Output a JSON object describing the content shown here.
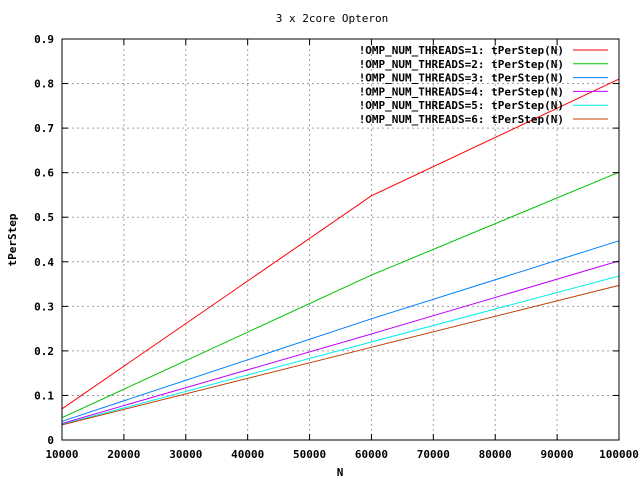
{
  "chart_data": {
    "type": "line",
    "title": "3 x 2core Opteron",
    "xlabel": "N",
    "ylabel": "tPerStep",
    "xlim": [
      10000,
      100000
    ],
    "ylim": [
      0,
      0.9
    ],
    "xticks": [
      10000,
      20000,
      30000,
      40000,
      50000,
      60000,
      70000,
      80000,
      90000,
      100000
    ],
    "yticks": [
      0,
      0.1,
      0.2,
      0.3,
      0.4,
      0.5,
      0.6,
      0.7,
      0.8,
      0.9
    ],
    "xtick_labels": [
      "10000",
      "20000",
      "30000",
      "40000",
      "50000",
      "60000",
      "70000",
      "80000",
      "90000",
      "100000"
    ],
    "ytick_labels": [
      "0",
      "0.1",
      "0.2",
      "0.3",
      "0.4",
      "0.5",
      "0.6",
      "0.7",
      "0.8",
      "0.9"
    ],
    "grid": true,
    "legend_position": "top-right",
    "series": [
      {
        "name": "!OMP_NUM_THREADS=1: tPerStep(N)",
        "color": "#ff0000",
        "x": [
          10000,
          60000,
          100000
        ],
        "y": [
          0.07,
          0.548,
          0.81
        ]
      },
      {
        "name": "!OMP_NUM_THREADS=2: tPerStep(N)",
        "color": "#00c000",
        "x": [
          10000,
          60000,
          100000
        ],
        "y": [
          0.05,
          0.37,
          0.601
        ]
      },
      {
        "name": "!OMP_NUM_THREADS=3: tPerStep(N)",
        "color": "#0080ff",
        "x": [
          10000,
          60000,
          100000
        ],
        "y": [
          0.042,
          0.272,
          0.447
        ]
      },
      {
        "name": "!OMP_NUM_THREADS=4: tPerStep(N)",
        "color": "#c000ff",
        "x": [
          10000,
          60000,
          100000
        ],
        "y": [
          0.037,
          0.238,
          0.402
        ]
      },
      {
        "name": "!OMP_NUM_THREADS=5: tPerStep(N)",
        "color": "#00eeee",
        "x": [
          10000,
          60000,
          100000
        ],
        "y": [
          0.035,
          0.22,
          0.368
        ]
      },
      {
        "name": "!OMP_NUM_THREADS=6: tPerStep(N)",
        "color": "#c04000",
        "x": [
          10000,
          60000,
          100000
        ],
        "y": [
          0.034,
          0.208,
          0.347
        ]
      }
    ]
  }
}
